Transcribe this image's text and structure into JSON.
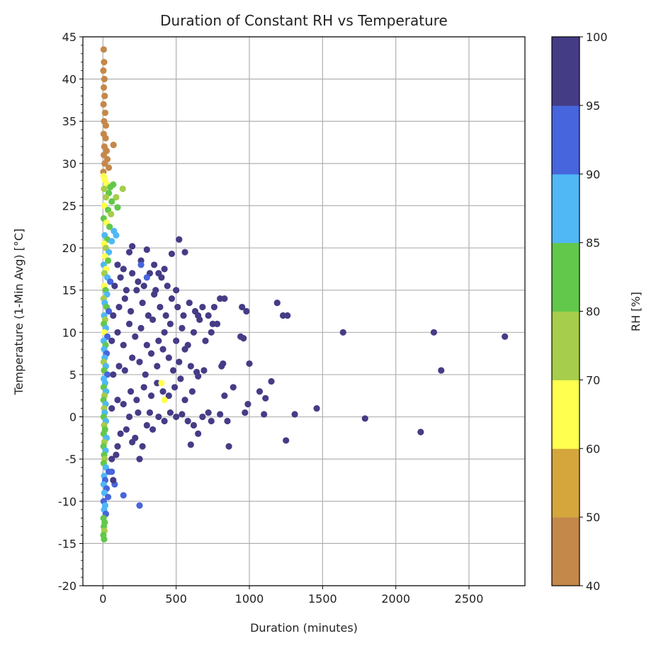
{
  "chart_data": {
    "type": "scatter",
    "title": "Duration of Constant RH vs Temperature",
    "xlabel": "Duration (minutes)",
    "ylabel": "Temperature (1-Min Avg) [°C]",
    "xlim": [
      -137,
      2882
    ],
    "ylim": [
      -20,
      45
    ],
    "xticks": [
      0,
      500,
      1000,
      1500,
      2000,
      2500
    ],
    "yticks": [
      -20,
      -15,
      -10,
      -5,
      0,
      5,
      10,
      15,
      20,
      25,
      30,
      35,
      40,
      45
    ],
    "grid": true,
    "colorbar": {
      "label": "RH [%]",
      "boundaries": [
        40,
        50,
        60,
        70,
        80,
        85,
        90,
        95,
        100
      ],
      "colors": [
        "#c4884b",
        "#d4a63c",
        "#ffff4f",
        "#a6cd4b",
        "#62c84b",
        "#4fb8f5",
        "#4765dc",
        "#453c86"
      ]
    },
    "point_format": [
      "duration_minutes",
      "temperature_c",
      "rh_percent"
    ],
    "points": [
      [
        5,
        43.5,
        45
      ],
      [
        8,
        42,
        45
      ],
      [
        3,
        41,
        45
      ],
      [
        10,
        40,
        45
      ],
      [
        6,
        39,
        45
      ],
      [
        12,
        38,
        45
      ],
      [
        4,
        37,
        45
      ],
      [
        15,
        36,
        45
      ],
      [
        8,
        35,
        45
      ],
      [
        20,
        34.5,
        45
      ],
      [
        5,
        33.5,
        45
      ],
      [
        18,
        33,
        45
      ],
      [
        10,
        32,
        45
      ],
      [
        25,
        31.5,
        45
      ],
      [
        72,
        32.2,
        45
      ],
      [
        6,
        31,
        45
      ],
      [
        30,
        30.5,
        45
      ],
      [
        12,
        30,
        45
      ],
      [
        40,
        29.5,
        45
      ],
      [
        3,
        29,
        45
      ],
      [
        5,
        28.5,
        65
      ],
      [
        15,
        28,
        65
      ],
      [
        28,
        27.5,
        65
      ],
      [
        8,
        27,
        75
      ],
      [
        50,
        27.2,
        82
      ],
      [
        70,
        27.5,
        82
      ],
      [
        135,
        27,
        75
      ],
      [
        40,
        26.5,
        82
      ],
      [
        20,
        26,
        75
      ],
      [
        90,
        26,
        75
      ],
      [
        60,
        25.5,
        82
      ],
      [
        10,
        25,
        65
      ],
      [
        35,
        24.5,
        82
      ],
      [
        100,
        24.8,
        82
      ],
      [
        55,
        24,
        75
      ],
      [
        5,
        23.5,
        82
      ],
      [
        25,
        23,
        65
      ],
      [
        45,
        22.5,
        82
      ],
      [
        75,
        22,
        87
      ],
      [
        12,
        21.5,
        87
      ],
      [
        30,
        21,
        82
      ],
      [
        60,
        20.8,
        87
      ],
      [
        90,
        21.5,
        87
      ],
      [
        8,
        20.5,
        65
      ],
      [
        20,
        20,
        75
      ],
      [
        40,
        19.5,
        87
      ],
      [
        15,
        19,
        65
      ],
      [
        35,
        18.5,
        82
      ],
      [
        5,
        18,
        87
      ],
      [
        22,
        17.5,
        65
      ],
      [
        10,
        17,
        75
      ],
      [
        30,
        16.5,
        87
      ],
      [
        50,
        16,
        92
      ],
      [
        8,
        15.5,
        65
      ],
      [
        18,
        15,
        82
      ],
      [
        28,
        14.5,
        87
      ],
      [
        5,
        14,
        75
      ],
      [
        12,
        13.5,
        87
      ],
      [
        25,
        13,
        82
      ],
      [
        40,
        12.5,
        92
      ],
      [
        8,
        12,
        87
      ],
      [
        15,
        11.5,
        75
      ],
      [
        6,
        11,
        82
      ],
      [
        20,
        10.5,
        87
      ],
      [
        10,
        10,
        65
      ],
      [
        30,
        9.5,
        92
      ],
      [
        5,
        9,
        87
      ],
      [
        18,
        8.5,
        82
      ],
      [
        8,
        8,
        87
      ],
      [
        25,
        7.5,
        92
      ],
      [
        12,
        7,
        87
      ],
      [
        5,
        6.5,
        75
      ],
      [
        20,
        6,
        87
      ],
      [
        8,
        5.5,
        82
      ],
      [
        30,
        5,
        92
      ],
      [
        6,
        4.5,
        87
      ],
      [
        15,
        4,
        87
      ],
      [
        5,
        3.5,
        82
      ],
      [
        22,
        3,
        87
      ],
      [
        10,
        2.5,
        75
      ],
      [
        4,
        2,
        82
      ],
      [
        18,
        1.5,
        87
      ],
      [
        8,
        1,
        75
      ],
      [
        12,
        0.5,
        87
      ],
      [
        5,
        0,
        82
      ],
      [
        20,
        -0.5,
        87
      ],
      [
        8,
        -1,
        75
      ],
      [
        14,
        -1.5,
        82
      ],
      [
        5,
        -2,
        82
      ],
      [
        25,
        -2.5,
        87
      ],
      [
        10,
        -3,
        75
      ],
      [
        4,
        -3.5,
        82
      ],
      [
        18,
        -4,
        87
      ],
      [
        8,
        -4.5,
        82
      ],
      [
        12,
        -5,
        75
      ],
      [
        5,
        -5.5,
        82
      ],
      [
        20,
        -6,
        87
      ],
      [
        40,
        -6.5,
        92
      ],
      [
        8,
        -7,
        87
      ],
      [
        15,
        -7.5,
        92
      ],
      [
        5,
        -8,
        87
      ],
      [
        25,
        -8.5,
        92
      ],
      [
        10,
        -9,
        87
      ],
      [
        35,
        -9.5,
        92
      ],
      [
        5,
        -10,
        92
      ],
      [
        15,
        -10.5,
        87
      ],
      [
        8,
        -11,
        87
      ],
      [
        20,
        -11.5,
        92
      ],
      [
        4,
        -12,
        82
      ],
      [
        12,
        -12.5,
        82
      ],
      [
        6,
        -13,
        82
      ],
      [
        10,
        -13.5,
        75
      ],
      [
        3,
        -14,
        82
      ],
      [
        8,
        -14.5,
        82
      ],
      [
        60,
        -6.5,
        92
      ],
      [
        80,
        -8,
        92
      ],
      [
        140,
        -9.3,
        92
      ],
      [
        250,
        -10.5,
        92
      ],
      [
        70,
        -7.5,
        98
      ],
      [
        90,
        -4.5,
        98
      ],
      [
        60,
        -5,
        98
      ],
      [
        100,
        -3.5,
        98
      ],
      [
        120,
        -2,
        98
      ],
      [
        160,
        -1.5,
        98
      ],
      [
        200,
        -3,
        98
      ],
      [
        250,
        -5,
        98
      ],
      [
        270,
        -3.5,
        98
      ],
      [
        220,
        -2.5,
        98
      ],
      [
        300,
        -1,
        98
      ],
      [
        340,
        -1.5,
        98
      ],
      [
        180,
        0,
        98
      ],
      [
        240,
        0.5,
        98
      ],
      [
        320,
        0.5,
        98
      ],
      [
        380,
        0,
        98
      ],
      [
        420,
        -0.5,
        98
      ],
      [
        460,
        0.5,
        98
      ],
      [
        500,
        0,
        98
      ],
      [
        540,
        0.3,
        98
      ],
      [
        580,
        -0.5,
        98
      ],
      [
        620,
        -1,
        98
      ],
      [
        680,
        0,
        98
      ],
      [
        600,
        -3.3,
        98
      ],
      [
        60,
        1,
        98
      ],
      [
        100,
        2,
        98
      ],
      [
        140,
        1.5,
        98
      ],
      [
        190,
        3,
        98
      ],
      [
        230,
        2,
        98
      ],
      [
        280,
        3.5,
        98
      ],
      [
        330,
        2.5,
        98
      ],
      [
        370,
        4,
        98
      ],
      [
        410,
        3,
        98
      ],
      [
        450,
        2.5,
        98
      ],
      [
        490,
        3.5,
        98
      ],
      [
        530,
        4.5,
        98
      ],
      [
        560,
        2,
        98
      ],
      [
        610,
        3,
        98
      ],
      [
        650,
        4.8,
        98
      ],
      [
        70,
        5,
        98
      ],
      [
        110,
        6,
        98
      ],
      [
        150,
        5.5,
        98
      ],
      [
        200,
        7,
        98
      ],
      [
        250,
        6.5,
        98
      ],
      [
        290,
        5,
        98
      ],
      [
        330,
        7.5,
        98
      ],
      [
        370,
        6,
        98
      ],
      [
        410,
        8,
        98
      ],
      [
        450,
        7,
        98
      ],
      [
        480,
        5.5,
        98
      ],
      [
        520,
        6.5,
        98
      ],
      [
        560,
        8,
        98
      ],
      [
        600,
        6,
        98
      ],
      [
        640,
        5.3,
        98
      ],
      [
        60,
        9,
        98
      ],
      [
        100,
        10,
        98
      ],
      [
        140,
        8.5,
        98
      ],
      [
        180,
        11,
        98
      ],
      [
        220,
        9.5,
        98
      ],
      [
        260,
        10.5,
        98
      ],
      [
        300,
        8.5,
        98
      ],
      [
        340,
        11.5,
        98
      ],
      [
        380,
        9,
        98
      ],
      [
        420,
        10,
        98
      ],
      [
        460,
        11,
        98
      ],
      [
        500,
        9,
        98
      ],
      [
        540,
        10.5,
        98
      ],
      [
        580,
        8.5,
        98
      ],
      [
        620,
        10,
        98
      ],
      [
        660,
        11.5,
        98
      ],
      [
        700,
        9,
        98
      ],
      [
        740,
        10,
        98
      ],
      [
        780,
        11,
        98
      ],
      [
        70,
        12,
        98
      ],
      [
        110,
        13,
        98
      ],
      [
        150,
        14,
        98
      ],
      [
        190,
        12.5,
        98
      ],
      [
        230,
        15,
        98
      ],
      [
        270,
        13.5,
        98
      ],
      [
        310,
        12,
        98
      ],
      [
        350,
        14.5,
        98
      ],
      [
        390,
        13,
        98
      ],
      [
        430,
        12,
        98
      ],
      [
        470,
        14,
        98
      ],
      [
        510,
        13,
        98
      ],
      [
        550,
        12,
        98
      ],
      [
        590,
        13.5,
        98
      ],
      [
        630,
        12.5,
        98
      ],
      [
        680,
        13,
        98
      ],
      [
        720,
        12,
        98
      ],
      [
        80,
        15.5,
        98
      ],
      [
        120,
        16.5,
        98
      ],
      [
        160,
        15,
        98
      ],
      [
        200,
        17,
        98
      ],
      [
        240,
        16,
        98
      ],
      [
        280,
        15.5,
        98
      ],
      [
        320,
        17,
        98
      ],
      [
        360,
        15,
        98
      ],
      [
        400,
        16.5,
        98
      ],
      [
        440,
        15.5,
        98
      ],
      [
        500,
        15,
        98
      ],
      [
        100,
        18,
        98
      ],
      [
        140,
        17.5,
        95
      ],
      [
        200,
        20.2,
        98
      ],
      [
        180,
        19.5,
        98
      ],
      [
        260,
        18.5,
        98
      ],
      [
        300,
        19.8,
        98
      ],
      [
        350,
        18,
        98
      ],
      [
        380,
        17,
        98
      ],
      [
        420,
        17.5,
        98
      ],
      [
        470,
        19.3,
        98
      ],
      [
        520,
        21,
        98
      ],
      [
        560,
        19.5,
        98
      ],
      [
        300,
        16.5,
        92
      ],
      [
        260,
        18,
        92
      ],
      [
        760,
        13,
        98
      ],
      [
        800,
        14,
        98
      ],
      [
        830,
        14,
        98
      ],
      [
        650,
        12,
        98
      ],
      [
        750,
        11,
        98
      ],
      [
        950,
        13,
        98
      ],
      [
        980,
        12.5,
        98
      ],
      [
        940,
        9.5,
        98
      ],
      [
        960,
        9.3,
        98
      ],
      [
        820,
        6.3,
        98
      ],
      [
        810,
        6,
        98
      ],
      [
        690,
        5.5,
        98
      ],
      [
        1190,
        13.5,
        98
      ],
      [
        1230,
        12,
        98
      ],
      [
        1260,
        12,
        98
      ],
      [
        1000,
        6.3,
        98
      ],
      [
        1150,
        4.2,
        98
      ],
      [
        1070,
        3,
        98
      ],
      [
        1110,
        2.2,
        98
      ],
      [
        1100,
        0.3,
        98
      ],
      [
        990,
        1.5,
        98
      ],
      [
        970,
        0.5,
        98
      ],
      [
        860,
        -3.5,
        98
      ],
      [
        850,
        -0.5,
        98
      ],
      [
        890,
        3.5,
        98
      ],
      [
        830,
        2.5,
        98
      ],
      [
        800,
        0.3,
        98
      ],
      [
        720,
        0.5,
        98
      ],
      [
        740,
        -0.5,
        98
      ],
      [
        650,
        -2,
        98
      ],
      [
        1640,
        10,
        98
      ],
      [
        2260,
        10,
        98
      ],
      [
        2745,
        9.5,
        98
      ],
      [
        2310,
        5.5,
        98
      ],
      [
        1460,
        1,
        98
      ],
      [
        1310,
        0.3,
        98
      ],
      [
        1790,
        -0.2,
        98
      ],
      [
        2170,
        -1.8,
        98
      ],
      [
        1250,
        -2.8,
        98
      ],
      [
        400,
        4,
        65
      ],
      [
        420,
        2,
        65
      ]
    ]
  }
}
